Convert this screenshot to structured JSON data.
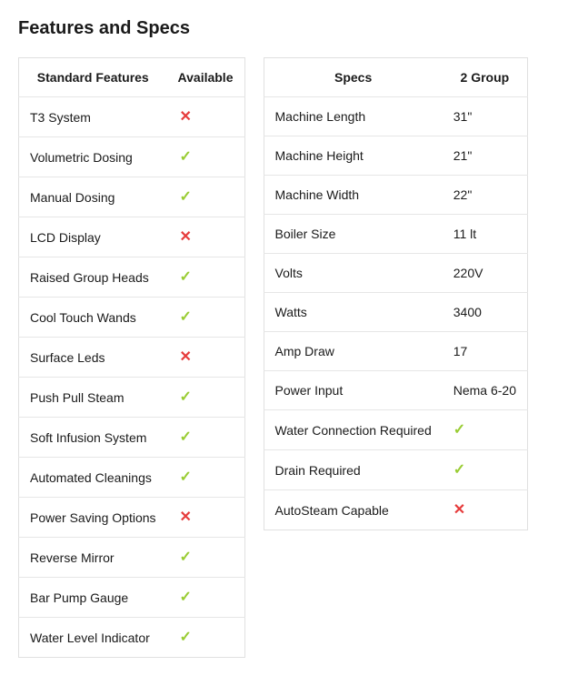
{
  "title": "Features and Specs",
  "featuresTable": {
    "headers": [
      "Standard Features",
      "Available"
    ],
    "rows": [
      {
        "label": "T3 System",
        "value": "cross"
      },
      {
        "label": "Volumetric Dosing",
        "value": "check"
      },
      {
        "label": "Manual Dosing",
        "value": "check"
      },
      {
        "label": "LCD Display",
        "value": "cross"
      },
      {
        "label": "Raised Group Heads",
        "value": "check"
      },
      {
        "label": "Cool Touch Wands",
        "value": "check"
      },
      {
        "label": "Surface Leds",
        "value": "cross"
      },
      {
        "label": "Push Pull Steam",
        "value": "check"
      },
      {
        "label": "Soft Infusion System",
        "value": "check"
      },
      {
        "label": "Automated Cleanings",
        "value": "check"
      },
      {
        "label": "Power Saving Options",
        "value": "cross"
      },
      {
        "label": "Reverse Mirror",
        "value": "check"
      },
      {
        "label": "Bar Pump Gauge",
        "value": "check"
      },
      {
        "label": "Water Level Indicator",
        "value": "check"
      }
    ]
  },
  "specsTable": {
    "headers": [
      "Specs",
      "2 Group"
    ],
    "rows": [
      {
        "label": "Machine Length",
        "value": "31\""
      },
      {
        "label": "Machine Height",
        "value": "21\""
      },
      {
        "label": "Machine Width",
        "value": "22\""
      },
      {
        "label": "Boiler Size",
        "value": "11 lt"
      },
      {
        "label": "Volts",
        "value": "220V"
      },
      {
        "label": "Watts",
        "value": "3400"
      },
      {
        "label": "Amp Draw",
        "value": "17"
      },
      {
        "label": "Power Input",
        "value": "Nema 6-20"
      },
      {
        "label": "Water Connection Required",
        "value": "check"
      },
      {
        "label": "Drain Required",
        "value": "check"
      },
      {
        "label": "AutoSteam Capable",
        "value": "cross"
      }
    ]
  },
  "icons": {
    "check": "✓",
    "cross": "✕"
  },
  "colors": {
    "check": "#99cc33",
    "cross": "#e63c3c",
    "border": "#e0e0e0",
    "text": "#1a1a1a",
    "background": "#ffffff"
  },
  "typography": {
    "title_fontsize": 20,
    "title_weight": 600,
    "header_weight": 700,
    "cell_fontsize": 14
  }
}
